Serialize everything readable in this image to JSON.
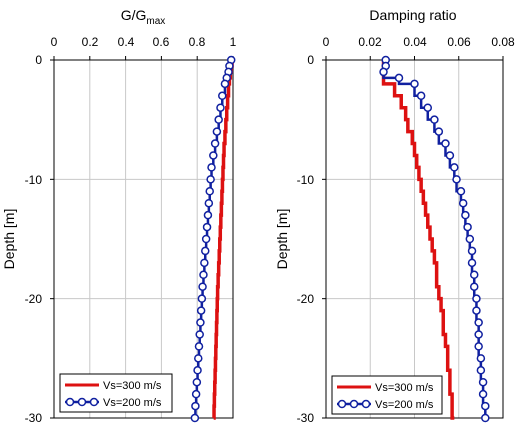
{
  "chart_data": [
    {
      "type": "line",
      "title": "G/G",
      "title_subscript": "max",
      "xlabel": "",
      "ylabel": "Depth [m]",
      "xlim": [
        0,
        1
      ],
      "ylim": [
        -30,
        0
      ],
      "x_ticks": [
        "0",
        "0.2",
        "0.4",
        "0.6",
        "0.8",
        "1"
      ],
      "y_ticks": [
        "0",
        "-10",
        "-20",
        "-30"
      ],
      "x_axis_position": "top",
      "grid": true,
      "legend_position": "bottom-left",
      "series": [
        {
          "name": "Vs=300 m/s",
          "color": "#dd1111",
          "marker": "none",
          "step": true,
          "points": [
            [
              0.995,
              0
            ],
            [
              0.99,
              -0.5
            ],
            [
              0.985,
              -1
            ],
            [
              0.98,
              -1.5
            ],
            [
              0.975,
              -2
            ],
            [
              0.97,
              -3
            ],
            [
              0.965,
              -4
            ],
            [
              0.96,
              -5
            ],
            [
              0.955,
              -6
            ],
            [
              0.95,
              -7
            ],
            [
              0.947,
              -8
            ],
            [
              0.944,
              -9
            ],
            [
              0.941,
              -10
            ],
            [
              0.938,
              -11
            ],
            [
              0.935,
              -12
            ],
            [
              0.932,
              -13
            ],
            [
              0.929,
              -14
            ],
            [
              0.926,
              -15
            ],
            [
              0.923,
              -16
            ],
            [
              0.92,
              -17
            ],
            [
              0.917,
              -18
            ],
            [
              0.914,
              -19
            ],
            [
              0.912,
              -20
            ],
            [
              0.91,
              -21
            ],
            [
              0.908,
              -22
            ],
            [
              0.906,
              -23
            ],
            [
              0.904,
              -24
            ],
            [
              0.902,
              -25
            ],
            [
              0.9,
              -26
            ],
            [
              0.898,
              -27
            ],
            [
              0.896,
              -28
            ],
            [
              0.894,
              -29
            ],
            [
              0.892,
              -30
            ]
          ]
        },
        {
          "name": "Vs=200 m/s",
          "color": "#1020a0",
          "marker": "circle",
          "step": true,
          "points": [
            [
              0.99,
              0
            ],
            [
              0.98,
              -0.5
            ],
            [
              0.975,
              -1
            ],
            [
              0.965,
              -1.5
            ],
            [
              0.955,
              -2
            ],
            [
              0.94,
              -3
            ],
            [
              0.93,
              -4
            ],
            [
              0.92,
              -5
            ],
            [
              0.91,
              -6
            ],
            [
              0.9,
              -7
            ],
            [
              0.89,
              -8
            ],
            [
              0.88,
              -9
            ],
            [
              0.875,
              -10
            ],
            [
              0.87,
              -11
            ],
            [
              0.865,
              -12
            ],
            [
              0.86,
              -13
            ],
            [
              0.855,
              -14
            ],
            [
              0.85,
              -15
            ],
            [
              0.845,
              -16
            ],
            [
              0.84,
              -17
            ],
            [
              0.835,
              -18
            ],
            [
              0.83,
              -19
            ],
            [
              0.826,
              -20
            ],
            [
              0.822,
              -21
            ],
            [
              0.818,
              -22
            ],
            [
              0.814,
              -23
            ],
            [
              0.81,
              -24
            ],
            [
              0.806,
              -25
            ],
            [
              0.802,
              -26
            ],
            [
              0.798,
              -27
            ],
            [
              0.794,
              -28
            ],
            [
              0.79,
              -29
            ],
            [
              0.787,
              -30
            ]
          ]
        }
      ]
    },
    {
      "type": "line",
      "title": "Damping ratio",
      "xlabel": "",
      "ylabel": "Depth [m]",
      "xlim": [
        0,
        0.08
      ],
      "ylim": [
        -30,
        0
      ],
      "x_ticks": [
        "0",
        "0.02",
        "0.04",
        "0.06",
        "0.08"
      ],
      "y_ticks": [
        "0",
        "-10",
        "-20",
        "-30"
      ],
      "x_axis_position": "top",
      "grid": true,
      "legend_position": "bottom-left",
      "series": [
        {
          "name": "Vs=300 m/s",
          "color": "#dd1111",
          "marker": "none",
          "step": true,
          "points": [
            [
              0.026,
              0
            ],
            [
              0.026,
              -0.5
            ],
            [
              0.026,
              -1
            ],
            [
              0.026,
              -1.5
            ],
            [
              0.031,
              -2
            ],
            [
              0.034,
              -3
            ],
            [
              0.036,
              -4
            ],
            [
              0.037,
              -5
            ],
            [
              0.039,
              -6
            ],
            [
              0.04,
              -7
            ],
            [
              0.041,
              -8
            ],
            [
              0.042,
              -9
            ],
            [
              0.043,
              -10
            ],
            [
              0.044,
              -11
            ],
            [
              0.045,
              -12
            ],
            [
              0.046,
              -13
            ],
            [
              0.047,
              -14
            ],
            [
              0.048,
              -15
            ],
            [
              0.049,
              -16
            ],
            [
              0.05,
              -17
            ],
            [
              0.05,
              -18
            ],
            [
              0.051,
              -19
            ],
            [
              0.052,
              -20
            ],
            [
              0.053,
              -21
            ],
            [
              0.053,
              -22
            ],
            [
              0.054,
              -23
            ],
            [
              0.055,
              -24
            ],
            [
              0.055,
              -25
            ],
            [
              0.056,
              -26
            ],
            [
              0.056,
              -27
            ],
            [
              0.057,
              -28
            ],
            [
              0.057,
              -29
            ],
            [
              0.058,
              -30
            ]
          ]
        },
        {
          "name": "Vs=200 m/s",
          "color": "#1020a0",
          "marker": "circle",
          "step": true,
          "points": [
            [
              0.027,
              0
            ],
            [
              0.027,
              -0.5
            ],
            [
              0.026,
              -1
            ],
            [
              0.033,
              -1.5
            ],
            [
              0.04,
              -2
            ],
            [
              0.043,
              -3
            ],
            [
              0.046,
              -4
            ],
            [
              0.049,
              -5
            ],
            [
              0.051,
              -6
            ],
            [
              0.054,
              -7
            ],
            [
              0.056,
              -8
            ],
            [
              0.058,
              -9
            ],
            [
              0.059,
              -10
            ],
            [
              0.061,
              -11
            ],
            [
              0.062,
              -12
            ],
            [
              0.063,
              -13
            ],
            [
              0.064,
              -14
            ],
            [
              0.065,
              -15
            ],
            [
              0.066,
              -16
            ],
            [
              0.066,
              -17
            ],
            [
              0.067,
              -18
            ],
            [
              0.067,
              -19
            ],
            [
              0.068,
              -20
            ],
            [
              0.068,
              -21
            ],
            [
              0.069,
              -22
            ],
            [
              0.069,
              -23
            ],
            [
              0.069,
              -24
            ],
            [
              0.07,
              -25
            ],
            [
              0.07,
              -26
            ],
            [
              0.071,
              -27
            ],
            [
              0.071,
              -28
            ],
            [
              0.072,
              -29
            ],
            [
              0.072,
              -30
            ]
          ]
        }
      ]
    }
  ]
}
